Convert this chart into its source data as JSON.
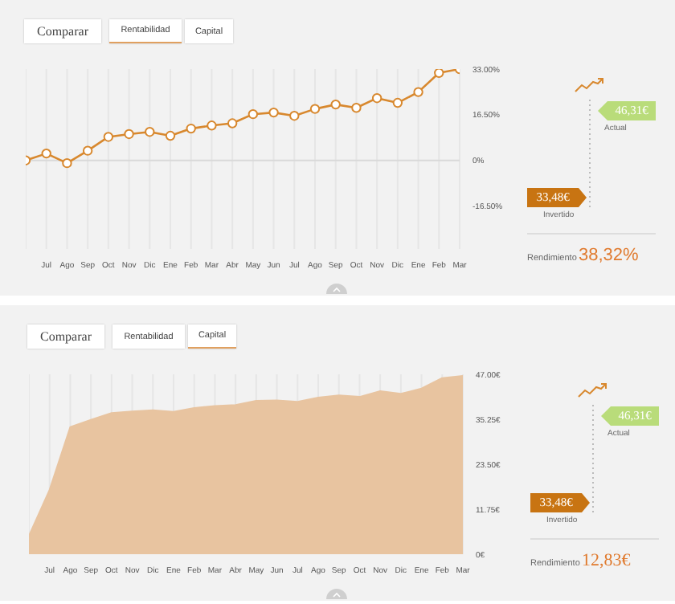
{
  "chart_data": [
    {
      "type": "line",
      "categories": [
        null,
        "Jul",
        "Ago",
        "Sep",
        "Oct",
        "Nov",
        "Dic",
        "Ene",
        "Feb",
        "Mar",
        "Abr",
        "May",
        "Jun",
        "Jul",
        "Ago",
        "Sep",
        "Oct",
        "Nov",
        "Dic",
        "Ene",
        "Feb",
        "Mar"
      ],
      "series": [
        {
          "color": "#d8882e",
          "values": [
            0,
            2.5,
            -1,
            3.5,
            8.5,
            9.5,
            10.3,
            8.9,
            11.5,
            12.6,
            13.4,
            16.7,
            17.3,
            16.1,
            18.6,
            20.2,
            19.0,
            22.5,
            20.8,
            24.7,
            31.6,
            33.0
          ]
        }
      ],
      "ylim": [
        -32,
        33
      ],
      "yticks": [
        {
          "value": 33,
          "label": "33.00%"
        },
        {
          "value": 16.5,
          "label": "16.50%"
        },
        {
          "value": 0,
          "label": "0%"
        },
        {
          "value": -16.5,
          "label": "-16.50%"
        }
      ],
      "grid": "x",
      "marker": "circle",
      "legend": false,
      "ref_lines": [
        {
          "axis": "y",
          "value": 0,
          "color": "#d9d9d9"
        }
      ],
      "annotations": [
        "Comparar",
        "Rentabilidad",
        "Capital",
        "46,31€",
        "Actual",
        "33,48€",
        "Invertido",
        "Rendimiento",
        "38,32%"
      ]
    },
    {
      "type": "area",
      "categories": [
        null,
        "Jul",
        "Ago",
        "Sep",
        "Oct",
        "Nov",
        "Dic",
        "Ene",
        "Feb",
        "Mar",
        "Abr",
        "May",
        "Jun",
        "Jul",
        "Ago",
        "Sep",
        "Oct",
        "Nov",
        "Dic",
        "Ene",
        "Feb",
        "Mar"
      ],
      "series": [
        {
          "color": "#e8c4a0",
          "values": [
            4.8,
            16.8,
            33.2,
            35.1,
            36.9,
            37.3,
            37.6,
            37.2,
            38.2,
            38.7,
            39.0,
            40.1,
            40.2,
            39.8,
            40.9,
            41.5,
            41.1,
            42.6,
            41.9,
            43.3,
            46.0,
            46.6
          ]
        }
      ],
      "ylim": [
        0,
        47
      ],
      "yticks": [
        {
          "value": 47,
          "label": "47.00€"
        },
        {
          "value": 35.25,
          "label": "35.25€"
        },
        {
          "value": 23.5,
          "label": "23.50€"
        },
        {
          "value": 11.75,
          "label": "11.75€"
        },
        {
          "value": 0,
          "label": "0€"
        }
      ],
      "grid": "x",
      "legend": false,
      "annotations": [
        "Comparar",
        "Rentabilidad",
        "Capital",
        "46,31€",
        "Actual",
        "33,48€",
        "Invertido",
        "Rendimiento",
        "12,83€"
      ]
    }
  ]
}
